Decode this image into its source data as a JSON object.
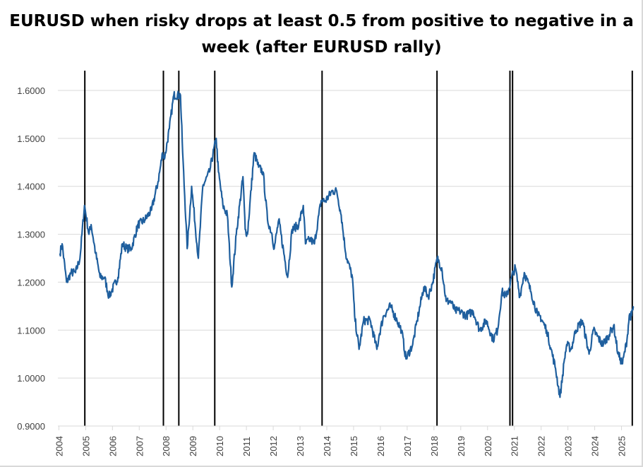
{
  "chart_data": {
    "type": "line",
    "title": "EURUSD when risky drops at least 0.5 from positive to negative in a week (after EURUSD rally)",
    "xlabel": "",
    "ylabel": "",
    "ylim": [
      0.9,
      1.6
    ],
    "yticks": [
      "0.9000",
      "1.0000",
      "1.1000",
      "1.2000",
      "1.3000",
      "1.4000",
      "1.5000",
      "1.6000"
    ],
    "xticks": [
      "2004",
      "2005",
      "2006",
      "2007",
      "2008",
      "2009",
      "2010",
      "2011",
      "2012",
      "2013",
      "2014",
      "2015",
      "2016",
      "2017",
      "2018",
      "2019",
      "2020",
      "2021",
      "2022",
      "2023",
      "2024",
      "2025"
    ],
    "xlim": [
      "2004-01-01",
      "2025-06-05"
    ],
    "grid": "horizontal",
    "series_color": "#1f5f9e",
    "event_line_color": "#000000",
    "series": [
      {
        "points": [
          [
            "2004-01",
            1.26
          ],
          [
            "2004-02",
            1.28
          ],
          [
            "2004-04",
            1.2
          ],
          [
            "2004-06",
            1.22
          ],
          [
            "2004-08",
            1.22
          ],
          [
            "2004-10",
            1.25
          ],
          [
            "2004-12",
            1.36
          ],
          [
            "2005-02",
            1.3
          ],
          [
            "2005-03",
            1.32
          ],
          [
            "2005-05",
            1.26
          ],
          [
            "2005-07",
            1.21
          ],
          [
            "2005-09",
            1.21
          ],
          [
            "2005-11",
            1.17
          ],
          [
            "2005-12",
            1.18
          ],
          [
            "2006-03",
            1.21
          ],
          [
            "2006-05",
            1.28
          ],
          [
            "2006-07",
            1.27
          ],
          [
            "2006-09",
            1.27
          ],
          [
            "2006-12",
            1.32
          ],
          [
            "2007-03",
            1.33
          ],
          [
            "2007-06",
            1.35
          ],
          [
            "2007-09",
            1.41
          ],
          [
            "2007-11",
            1.47
          ],
          [
            "2007-12",
            1.46
          ],
          [
            "2008-02",
            1.52
          ],
          [
            "2008-04",
            1.59
          ],
          [
            "2008-07",
            1.59
          ],
          [
            "2008-08",
            1.47
          ],
          [
            "2008-10",
            1.27
          ],
          [
            "2008-12",
            1.4
          ],
          [
            "2009-03",
            1.25
          ],
          [
            "2009-05",
            1.4
          ],
          [
            "2009-08",
            1.43
          ],
          [
            "2009-11",
            1.5
          ],
          [
            "2009-12",
            1.43
          ],
          [
            "2010-02",
            1.36
          ],
          [
            "2010-04",
            1.34
          ],
          [
            "2010-06",
            1.19
          ],
          [
            "2010-08",
            1.3
          ],
          [
            "2010-11",
            1.42
          ],
          [
            "2010-12",
            1.31
          ],
          [
            "2011-01",
            1.3
          ],
          [
            "2011-04",
            1.47
          ],
          [
            "2011-06",
            1.44
          ],
          [
            "2011-08",
            1.43
          ],
          [
            "2011-10",
            1.33
          ],
          [
            "2011-12",
            1.3
          ],
          [
            "2012-01",
            1.27
          ],
          [
            "2012-03",
            1.33
          ],
          [
            "2012-07",
            1.21
          ],
          [
            "2012-09",
            1.31
          ],
          [
            "2012-12",
            1.32
          ],
          [
            "2013-02",
            1.36
          ],
          [
            "2013-03",
            1.28
          ],
          [
            "2013-05",
            1.29
          ],
          [
            "2013-07",
            1.28
          ],
          [
            "2013-10",
            1.37
          ],
          [
            "2013-12",
            1.37
          ],
          [
            "2014-03",
            1.39
          ],
          [
            "2014-05",
            1.39
          ],
          [
            "2014-07",
            1.34
          ],
          [
            "2014-09",
            1.26
          ],
          [
            "2014-12",
            1.21
          ],
          [
            "2015-01",
            1.13
          ],
          [
            "2015-03",
            1.06
          ],
          [
            "2015-05",
            1.12
          ],
          [
            "2015-08",
            1.12
          ],
          [
            "2015-11",
            1.06
          ],
          [
            "2015-12",
            1.09
          ],
          [
            "2016-02",
            1.13
          ],
          [
            "2016-05",
            1.15
          ],
          [
            "2016-08",
            1.12
          ],
          [
            "2016-10",
            1.1
          ],
          [
            "2016-12",
            1.04
          ],
          [
            "2017-03",
            1.07
          ],
          [
            "2017-05",
            1.12
          ],
          [
            "2017-08",
            1.19
          ],
          [
            "2017-10",
            1.17
          ],
          [
            "2017-12",
            1.2
          ],
          [
            "2018-02",
            1.25
          ],
          [
            "2018-04",
            1.23
          ],
          [
            "2018-06",
            1.16
          ],
          [
            "2018-08",
            1.16
          ],
          [
            "2018-10",
            1.14
          ],
          [
            "2018-12",
            1.14
          ],
          [
            "2019-03",
            1.13
          ],
          [
            "2019-06",
            1.14
          ],
          [
            "2019-09",
            1.1
          ],
          [
            "2019-12",
            1.12
          ],
          [
            "2020-03",
            1.08
          ],
          [
            "2020-05",
            1.1
          ],
          [
            "2020-07",
            1.18
          ],
          [
            "2020-09",
            1.17
          ],
          [
            "2020-12",
            1.22
          ],
          [
            "2021-01",
            1.23
          ],
          [
            "2021-03",
            1.17
          ],
          [
            "2021-05",
            1.22
          ],
          [
            "2021-08",
            1.18
          ],
          [
            "2021-11",
            1.13
          ],
          [
            "2021-12",
            1.13
          ],
          [
            "2022-03",
            1.1
          ],
          [
            "2022-05",
            1.06
          ],
          [
            "2022-07",
            1.02
          ],
          [
            "2022-09",
            0.96
          ],
          [
            "2022-11",
            1.04
          ],
          [
            "2022-12",
            1.07
          ],
          [
            "2023-02",
            1.06
          ],
          [
            "2023-04",
            1.1
          ],
          [
            "2023-07",
            1.12
          ],
          [
            "2023-10",
            1.05
          ],
          [
            "2023-12",
            1.1
          ],
          [
            "2024-04",
            1.07
          ],
          [
            "2024-07",
            1.09
          ],
          [
            "2024-09",
            1.11
          ],
          [
            "2024-11",
            1.05
          ],
          [
            "2024-12",
            1.04
          ],
          [
            "2025-01",
            1.03
          ],
          [
            "2025-03",
            1.08
          ],
          [
            "2025-04",
            1.13
          ],
          [
            "2025-05",
            1.13
          ],
          [
            "2025-06",
            1.15
          ]
        ]
      }
    ],
    "event_lines": [
      "2004-12-20",
      "2007-11-26",
      "2008-06-23",
      "2009-10-26",
      "2013-10-28",
      "2018-02-12",
      "2020-11-02",
      "2020-12-07",
      "2025-05-26"
    ]
  }
}
